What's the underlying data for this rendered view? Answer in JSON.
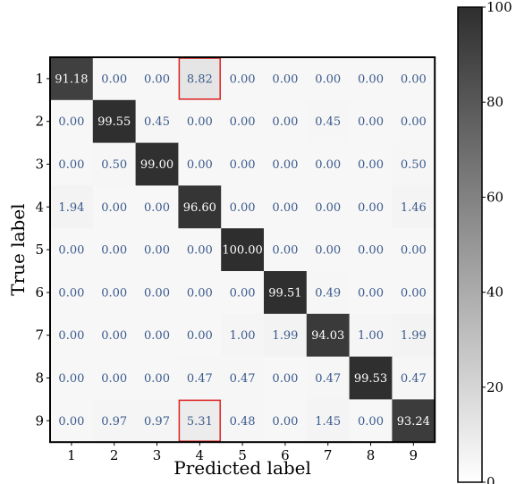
{
  "chart_data": {
    "type": "heatmap",
    "title": "",
    "xlabel": "Predicted label",
    "ylabel": "True label",
    "x_categories": [
      "1",
      "2",
      "3",
      "4",
      "5",
      "6",
      "7",
      "8",
      "9"
    ],
    "y_categories": [
      "1",
      "2",
      "3",
      "4",
      "5",
      "6",
      "7",
      "8",
      "9"
    ],
    "values": [
      [
        "91.18",
        "0.00",
        "0.00",
        "8.82",
        "0.00",
        "0.00",
        "0.00",
        "0.00",
        "0.00"
      ],
      [
        "0.00",
        "99.55",
        "0.45",
        "0.00",
        "0.00",
        "0.00",
        "0.45",
        "0.00",
        "0.00"
      ],
      [
        "0.00",
        "0.50",
        "99.00",
        "0.00",
        "0.00",
        "0.00",
        "0.00",
        "0.00",
        "0.50"
      ],
      [
        "1.94",
        "0.00",
        "0.00",
        "96.60",
        "0.00",
        "0.00",
        "0.00",
        "0.00",
        "1.46"
      ],
      [
        "0.00",
        "0.00",
        "0.00",
        "0.00",
        "100.00",
        "0.00",
        "0.00",
        "0.00",
        "0.00"
      ],
      [
        "0.00",
        "0.00",
        "0.00",
        "0.00",
        "0.00",
        "99.51",
        "0.49",
        "0.00",
        "0.00"
      ],
      [
        "0.00",
        "0.00",
        "0.00",
        "0.00",
        "1.00",
        "1.99",
        "94.03",
        "1.00",
        "1.99"
      ],
      [
        "0.00",
        "0.00",
        "0.00",
        "0.47",
        "0.47",
        "0.00",
        "0.47",
        "99.53",
        "0.47"
      ],
      [
        "0.00",
        "0.97",
        "0.97",
        "5.31",
        "0.48",
        "0.00",
        "1.45",
        "0.00",
        "93.24"
      ]
    ],
    "highlighted_cells": [
      {
        "true_label": "1",
        "predicted_label": "4"
      },
      {
        "true_label": "9",
        "predicted_label": "4"
      }
    ],
    "colorbar": {
      "min": 0,
      "max": 100,
      "ticks": [
        "0",
        "20",
        "40",
        "60",
        "80",
        "100"
      ]
    },
    "colors": {
      "low": "#f7f7f7",
      "high": "#2e2e2e",
      "text_light": "#ffffff",
      "text_dark": "#3b5a8c",
      "highlight": "#e02020"
    }
  }
}
